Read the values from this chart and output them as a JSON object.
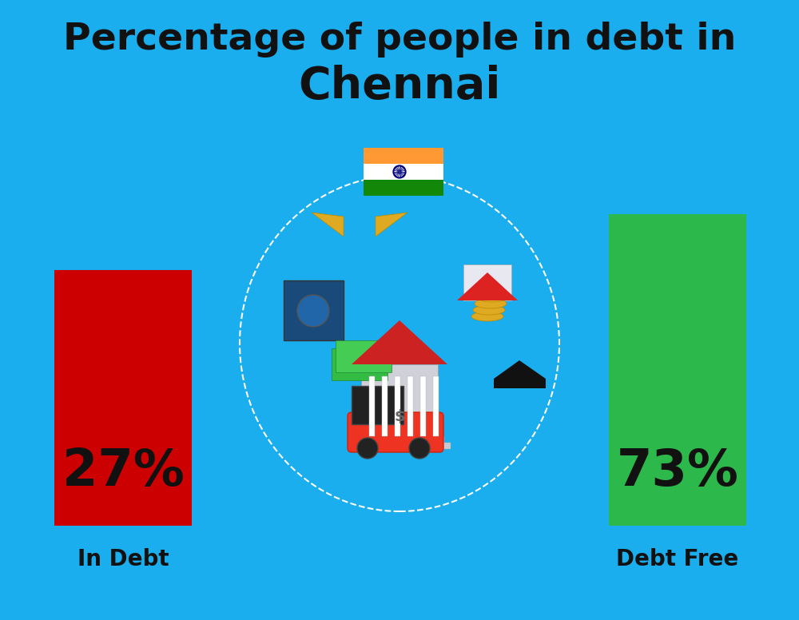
{
  "title_line1": "Percentage of people in debt in",
  "title_line2": "Chennai",
  "background_color": "#1AAEEE",
  "bar_left_label": "In Debt",
  "bar_right_label": "Debt Free",
  "bar_left_pct": "27%",
  "bar_right_pct": "73%",
  "bar_left_color": "#CC0000",
  "bar_right_color": "#2DB84B",
  "text_color": "#111111",
  "title_color": "#111111",
  "label_fontsize": 20,
  "pct_fontsize": 46,
  "title_fontsize1": 34,
  "title_fontsize2": 40,
  "flag_saffron": "#FF9933",
  "flag_white": "#FFFFFF",
  "flag_green": "#138808",
  "flag_navy": "#000080"
}
